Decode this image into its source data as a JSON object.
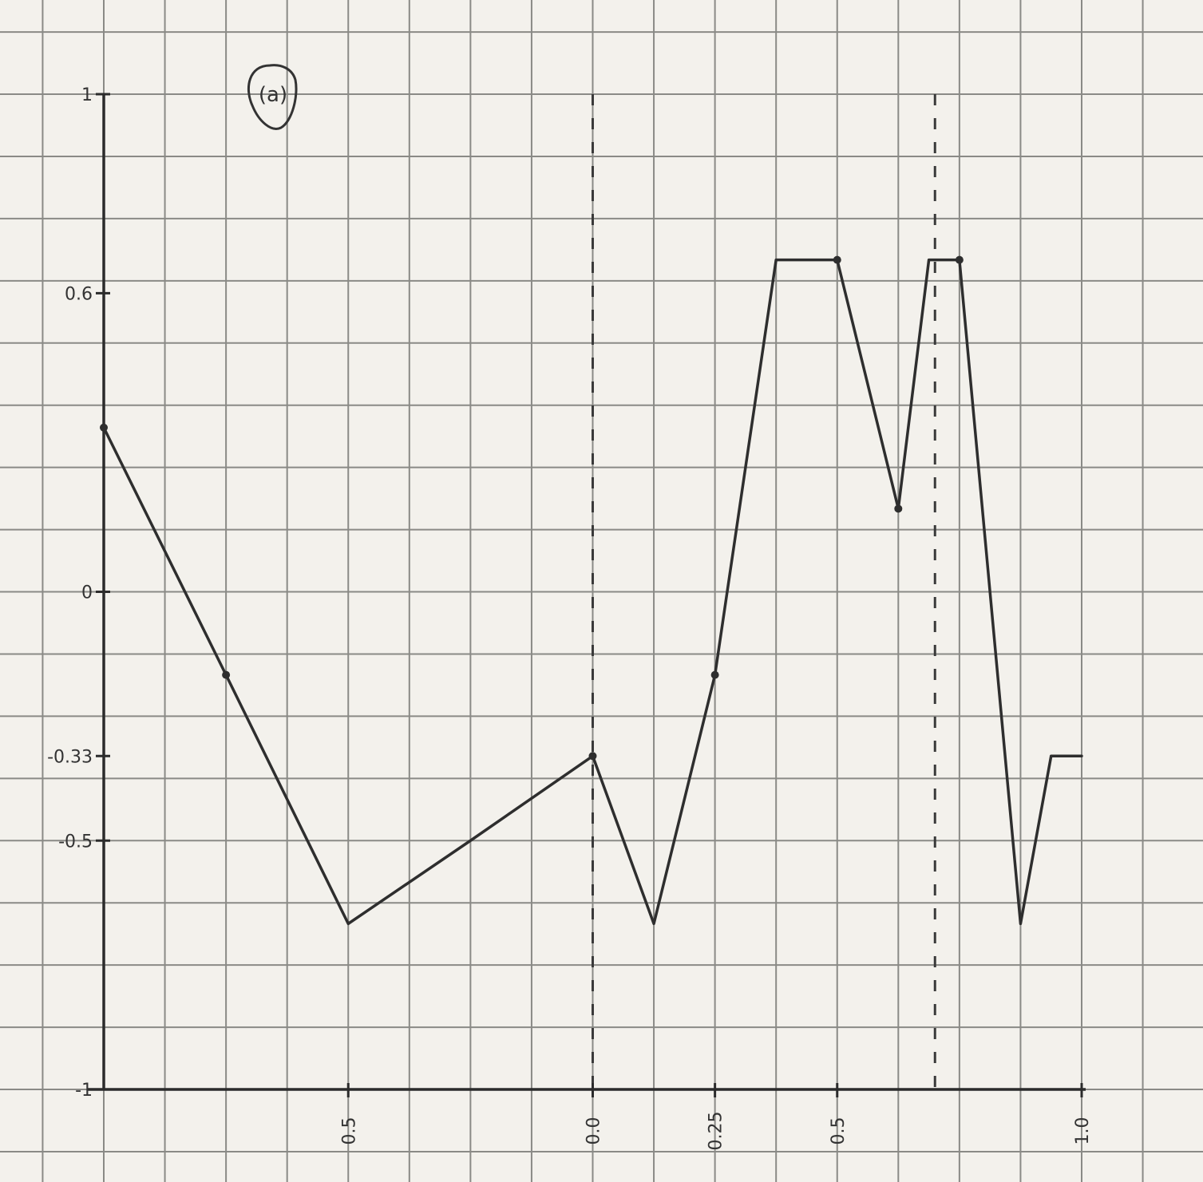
{
  "figure_label": "(a)",
  "chart_data": {
    "type": "line",
    "title": "",
    "xlabel": "",
    "ylabel": "",
    "xlim": [
      0,
      1.0
    ],
    "ylim": [
      -1,
      1
    ],
    "grid": true,
    "y_ticks": [
      {
        "value": 1,
        "label": "1"
      },
      {
        "value": 0.6,
        "label": "0.6"
      },
      {
        "value": 0,
        "label": "0"
      },
      {
        "value": -0.33,
        "label": "-0.33"
      },
      {
        "value": -0.5,
        "label": "-0.5"
      },
      {
        "value": -1,
        "label": "-1"
      }
    ],
    "x_ticks": [
      {
        "value": 0.25,
        "label": "0.5"
      },
      {
        "value": 0.5,
        "label": "0.0"
      },
      {
        "value": 0.625,
        "label": "0.25"
      },
      {
        "value": 0.75,
        "label": "0.5"
      },
      {
        "value": 1.0,
        "label": "1.0"
      }
    ],
    "series": [
      {
        "x": [
          0,
          0.125,
          0.25,
          0.375,
          0.5,
          0.5625,
          0.625,
          0.6875,
          0.75,
          0.8125,
          0.84375,
          0.875,
          0.9375,
          0.96875,
          1.0
        ],
        "y": [
          0.33,
          -0.167,
          -0.667,
          -0.5,
          -0.33,
          -0.667,
          -0.167,
          0.667,
          0.667,
          0.167,
          0.667,
          0.667,
          -0.667,
          -0.33,
          -0.33
        ],
        "markers_at": [
          0,
          1,
          4,
          6,
          8,
          9,
          11
        ]
      }
    ],
    "dashed_vertical_lines": [
      0.5,
      0.85
    ]
  }
}
